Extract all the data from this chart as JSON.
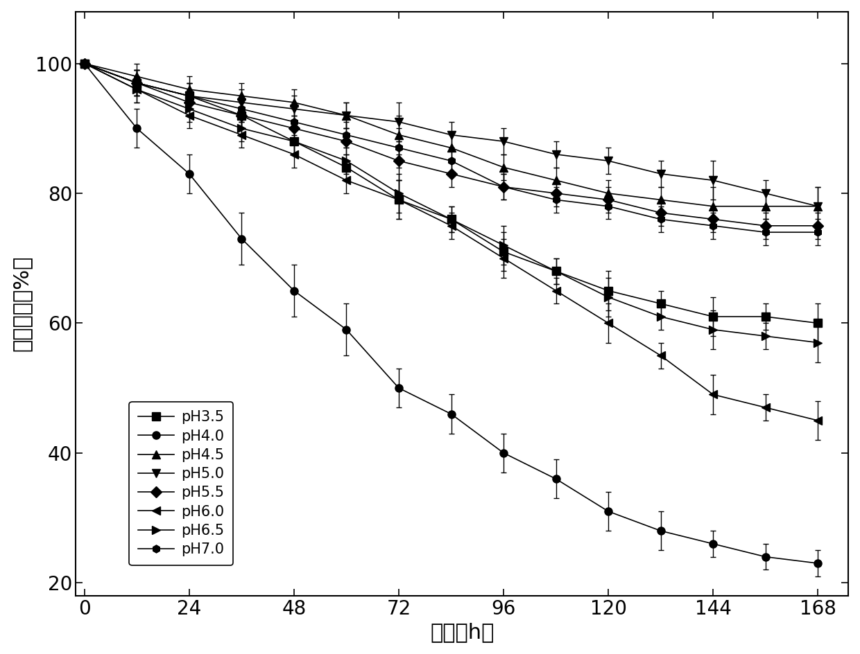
{
  "x": [
    0,
    12,
    24,
    36,
    48,
    60,
    72,
    84,
    96,
    108,
    120,
    132,
    144,
    156,
    168
  ],
  "series": {
    "pH3.5": {
      "y": [
        100,
        97,
        95,
        92,
        88,
        84,
        79,
        76,
        71,
        68,
        65,
        63,
        61,
        61,
        60
      ],
      "yerr": [
        0,
        2,
        2,
        2,
        2,
        2,
        3,
        2,
        3,
        2,
        3,
        2,
        3,
        2,
        3
      ],
      "marker": "s",
      "label": "pH3.5"
    },
    "pH4.0": {
      "y": [
        100,
        90,
        83,
        73,
        65,
        59,
        50,
        46,
        40,
        36,
        31,
        28,
        26,
        24,
        23
      ],
      "yerr": [
        0,
        3,
        3,
        4,
        4,
        4,
        3,
        3,
        3,
        3,
        3,
        3,
        2,
        2,
        2
      ],
      "marker": "o",
      "label": "pH4.0"
    },
    "pH4.5": {
      "y": [
        100,
        98,
        96,
        95,
        94,
        92,
        89,
        87,
        84,
        82,
        80,
        79,
        78,
        78,
        78
      ],
      "yerr": [
        0,
        2,
        2,
        2,
        2,
        2,
        3,
        2,
        2,
        2,
        2,
        2,
        3,
        2,
        3
      ],
      "marker": "^",
      "label": "pH4.5"
    },
    "pH5.0": {
      "y": [
        100,
        97,
        95,
        94,
        93,
        92,
        91,
        89,
        88,
        86,
        85,
        83,
        82,
        80,
        78
      ],
      "yerr": [
        0,
        2,
        2,
        2,
        2,
        2,
        3,
        2,
        2,
        2,
        2,
        2,
        3,
        2,
        3
      ],
      "marker": "v",
      "label": "pH5.0"
    },
    "pH5.5": {
      "y": [
        100,
        97,
        94,
        92,
        90,
        88,
        85,
        83,
        81,
        80,
        79,
        77,
        76,
        75,
        75
      ],
      "yerr": [
        0,
        2,
        2,
        2,
        2,
        2,
        3,
        2,
        2,
        2,
        2,
        2,
        2,
        2,
        2
      ],
      "marker": "D",
      "label": "pH5.5"
    },
    "pH6.0": {
      "y": [
        100,
        96,
        92,
        89,
        86,
        82,
        79,
        75,
        70,
        65,
        60,
        55,
        49,
        47,
        45
      ],
      "yerr": [
        0,
        2,
        2,
        2,
        2,
        2,
        3,
        2,
        3,
        2,
        3,
        2,
        3,
        2,
        3
      ],
      "marker": "<",
      "label": "pH6.0"
    },
    "pH6.5": {
      "y": [
        100,
        96,
        93,
        90,
        88,
        85,
        80,
        76,
        72,
        68,
        64,
        61,
        59,
        58,
        57
      ],
      "yerr": [
        0,
        2,
        2,
        2,
        2,
        2,
        3,
        2,
        3,
        2,
        3,
        2,
        3,
        2,
        3
      ],
      "marker": ">",
      "label": "pH6.5"
    },
    "pH7.0": {
      "y": [
        100,
        97,
        95,
        93,
        91,
        89,
        87,
        85,
        81,
        79,
        78,
        76,
        75,
        74,
        74
      ],
      "yerr": [
        0,
        2,
        2,
        2,
        2,
        2,
        3,
        2,
        2,
        2,
        2,
        2,
        2,
        2,
        2
      ],
      "marker": "h",
      "label": "pH7.0"
    }
  },
  "xlabel": "时间（h）",
  "ylabel": "残留酶活（%）",
  "xlim": [
    -2,
    175
  ],
  "ylim": [
    18,
    108
  ],
  "xticks": [
    0,
    24,
    48,
    72,
    96,
    120,
    144,
    168
  ],
  "yticks": [
    20,
    40,
    60,
    80,
    100
  ],
  "color": "#000000",
  "markersize": 8,
  "linewidth": 1.2,
  "capsize": 3,
  "legend_fontsize": 15,
  "tick_fontsize": 20,
  "label_fontsize": 22
}
